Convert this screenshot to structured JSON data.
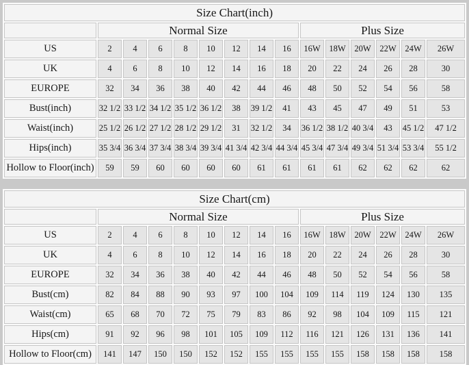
{
  "style": {
    "page_background": "#c9c9c9",
    "header_cell_background": "#f4f4f4",
    "data_cell_background": "#e5e5e5",
    "grid_line_color": "#c6c6c6",
    "text_color": "#161616"
  },
  "chart_data": [
    {
      "type": "table",
      "title": "Size Chart(inch)",
      "group_headers": {
        "normal": "Normal Size",
        "plus": "Plus Size"
      },
      "normal_span": 8,
      "plus_span": 6,
      "rows": [
        {
          "label": "US",
          "values": [
            "2",
            "4",
            "6",
            "8",
            "10",
            "12",
            "14",
            "16",
            "16W",
            "18W",
            "20W",
            "22W",
            "24W",
            "26W"
          ]
        },
        {
          "label": "UK",
          "values": [
            "4",
            "6",
            "8",
            "10",
            "12",
            "14",
            "16",
            "18",
            "20",
            "22",
            "24",
            "26",
            "28",
            "30"
          ]
        },
        {
          "label": "EUROPE",
          "values": [
            "32",
            "34",
            "36",
            "38",
            "40",
            "42",
            "44",
            "46",
            "48",
            "50",
            "52",
            "54",
            "56",
            "58"
          ]
        },
        {
          "label": "Bust(inch)",
          "values": [
            "32 1/2",
            "33 1/2",
            "34 1/2",
            "35 1/2",
            "36 1/2",
            "38",
            "39 1/2",
            "41",
            "43",
            "45",
            "47",
            "49",
            "51",
            "53"
          ]
        },
        {
          "label": "Waist(inch)",
          "values": [
            "25 1/2",
            "26 1/2",
            "27 1/2",
            "28 1/2",
            "29 1/2",
            "31",
            "32 1/2",
            "34",
            "36 1/2",
            "38 1/2",
            "40 3/4",
            "43",
            "45 1/2",
            "47 1/2"
          ]
        },
        {
          "label": "Hips(inch)",
          "values": [
            "35 3/4",
            "36 3/4",
            "37 3/4",
            "38 3/4",
            "39 3/4",
            "41 3/4",
            "42 3/4",
            "44 3/4",
            "45 3/4",
            "47 3/4",
            "49 3/4",
            "51 3/4",
            "53 3/4",
            "55 1/2"
          ]
        },
        {
          "label": "Hollow to Floor(inch)",
          "values": [
            "59",
            "59",
            "60",
            "60",
            "60",
            "60",
            "61",
            "61",
            "61",
            "61",
            "62",
            "62",
            "62",
            "62"
          ]
        }
      ]
    },
    {
      "type": "table",
      "title": "Size Chart(cm)",
      "group_headers": {
        "normal": "Normal Size",
        "plus": "Plus Size"
      },
      "normal_span": 8,
      "plus_span": 6,
      "rows": [
        {
          "label": "US",
          "values": [
            "2",
            "4",
            "6",
            "8",
            "10",
            "12",
            "14",
            "16",
            "16W",
            "18W",
            "20W",
            "22W",
            "24W",
            "26W"
          ]
        },
        {
          "label": "UK",
          "values": [
            "4",
            "6",
            "8",
            "10",
            "12",
            "14",
            "16",
            "18",
            "20",
            "22",
            "24",
            "26",
            "28",
            "30"
          ]
        },
        {
          "label": "EUROPE",
          "values": [
            "32",
            "34",
            "36",
            "38",
            "40",
            "42",
            "44",
            "46",
            "48",
            "50",
            "52",
            "54",
            "56",
            "58"
          ]
        },
        {
          "label": "Bust(cm)",
          "values": [
            "82",
            "84",
            "88",
            "90",
            "93",
            "97",
            "100",
            "104",
            "109",
            "114",
            "119",
            "124",
            "130",
            "135"
          ]
        },
        {
          "label": "Waist(cm)",
          "values": [
            "65",
            "68",
            "70",
            "72",
            "75",
            "79",
            "83",
            "86",
            "92",
            "98",
            "104",
            "109",
            "115",
            "121"
          ]
        },
        {
          "label": "Hips(cm)",
          "values": [
            "91",
            "92",
            "96",
            "98",
            "101",
            "105",
            "109",
            "112",
            "116",
            "121",
            "126",
            "131",
            "136",
            "141"
          ]
        },
        {
          "label": "Hollow to Floor(cm)",
          "values": [
            "141",
            "147",
            "150",
            "150",
            "152",
            "152",
            "155",
            "155",
            "155",
            "155",
            "158",
            "158",
            "158",
            "158"
          ]
        }
      ]
    }
  ]
}
